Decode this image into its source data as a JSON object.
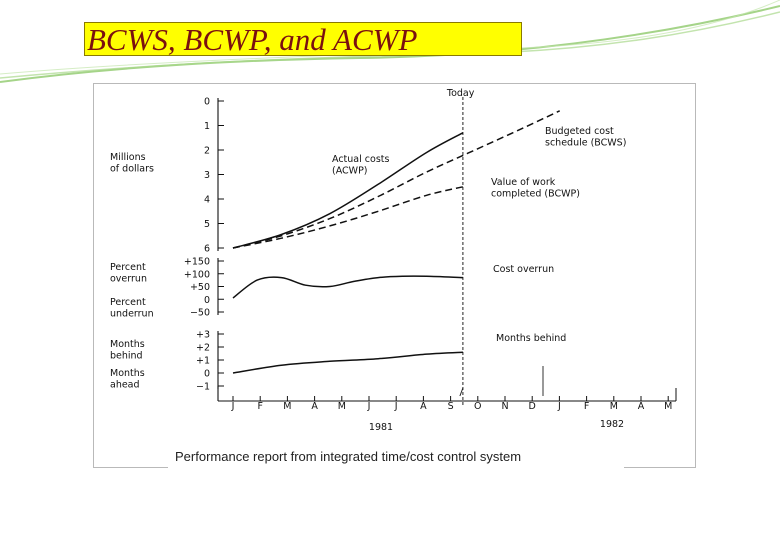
{
  "slide": {
    "title": "BCWS, BCWP, and ACWP",
    "caption": "Performance report from integrated time/cost control system",
    "colors": {
      "title_background": "#ffff00",
      "title_text": "#7a1010",
      "decoration": "#8fc96b"
    }
  },
  "chart_data": {
    "type": "line",
    "panels": [
      {
        "name": "costs",
        "ylabel": [
          "Millions",
          "of dollars"
        ],
        "ylim": [
          0,
          6
        ],
        "yticks": [
          "0",
          "1",
          "2",
          "3",
          "4",
          "5",
          "6"
        ],
        "series": [
          {
            "name": "Actual costs (ACWP)",
            "style": "solid",
            "x": [
              0,
              2,
              4,
              6,
              8,
              9.5
            ],
            "values": [
              0,
              0.55,
              1.4,
              2.6,
              3.9,
              4.7
            ]
          },
          {
            "name": "Budgeted cost schedule (BCWS)",
            "style": "dashed",
            "x": [
              0,
              2,
              4,
              6,
              8,
              10,
              12,
              13.5
            ],
            "values": [
              0,
              0.5,
              1.2,
              2.1,
              3.1,
              4.0,
              4.9,
              5.6
            ]
          },
          {
            "name": "Value of work completed (BCWP)",
            "style": "dashed",
            "x": [
              0,
              2,
              4,
              6,
              8,
              9.5
            ],
            "values": [
              0,
              0.4,
              0.9,
              1.5,
              2.15,
              2.5
            ]
          }
        ],
        "labels": [
          {
            "lines": [
              "Actual costs",
              "(ACWP)"
            ]
          },
          {
            "lines": [
              "Budgeted cost",
              "schedule (BCWS)"
            ]
          },
          {
            "lines": [
              "Value of work",
              "completed (BCWP)"
            ]
          }
        ]
      },
      {
        "name": "overrun",
        "ylabel_top": [
          "Percent",
          "overrun"
        ],
        "ylabel_bottom": [
          "Percent",
          "underrun"
        ],
        "ylim": [
          -50,
          150
        ],
        "yticks": [
          "+150",
          "+100",
          "+50",
          "0",
          "−50"
        ],
        "series": [
          {
            "name": "Cost overrun",
            "style": "solid",
            "x": [
              0,
              1,
              2,
              3,
              4,
              5,
              6,
              7,
              8,
              9.5
            ],
            "values": [
              5,
              75,
              85,
              55,
              50,
              70,
              85,
              90,
              90,
              85
            ]
          }
        ],
        "labels": [
          {
            "lines": [
              "Cost overrun"
            ]
          }
        ]
      },
      {
        "name": "schedule",
        "ylabel_top": [
          "Months",
          "behind"
        ],
        "ylabel_bottom": [
          "Months",
          "ahead"
        ],
        "ylim": [
          -1,
          3
        ],
        "yticks": [
          "+3",
          "+2",
          "+1",
          "0",
          "−1"
        ],
        "series": [
          {
            "name": "Months behind",
            "style": "solid",
            "x": [
              0,
              2,
              4,
              6,
              8,
              9.5
            ],
            "values": [
              0,
              0.6,
              0.9,
              1.1,
              1.45,
              1.6
            ]
          }
        ],
        "labels": [
          {
            "lines": [
              "Months behind"
            ]
          }
        ]
      }
    ],
    "x_ticks": [
      "J",
      "F",
      "M",
      "A",
      "M",
      "J",
      "J",
      "A",
      "S",
      "O",
      "N",
      "D",
      "J",
      "F",
      "M",
      "A",
      "M"
    ],
    "years": [
      "1981",
      "1982"
    ],
    "today": {
      "label": "Today",
      "x": 9.5
    }
  }
}
